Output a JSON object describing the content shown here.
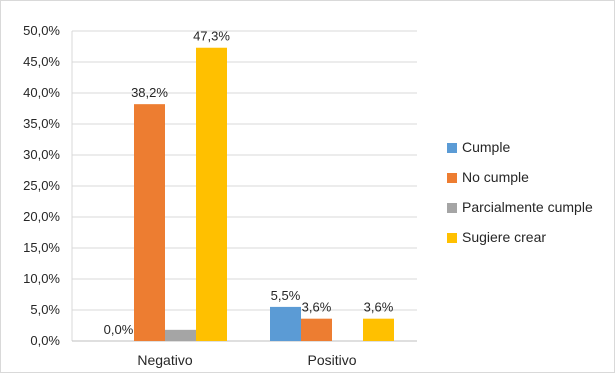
{
  "chart_data": {
    "type": "bar",
    "categories": [
      "Negativo",
      "Positivo"
    ],
    "series": [
      {
        "name": "Cumple",
        "color": "#5B9BD5",
        "values": [
          0.0,
          5.5
        ],
        "labels": [
          "0,0%",
          "5,5%"
        ]
      },
      {
        "name": "No cumple",
        "color": "#ED7D31",
        "values": [
          38.2,
          3.6
        ],
        "labels": [
          "38,2%",
          "3,6%"
        ]
      },
      {
        "name": "Parcialmente cumple",
        "color": "#A5A5A5",
        "values": [
          1.8,
          0.0
        ],
        "labels": [
          "",
          ""
        ]
      },
      {
        "name": "Sugiere crear",
        "color": "#FFC000",
        "values": [
          47.3,
          3.6
        ],
        "labels": [
          "47,3%",
          "3,6%"
        ]
      }
    ],
    "y_ticks": [
      {
        "value": 0,
        "label": "0,0%"
      },
      {
        "value": 5,
        "label": "5,0%"
      },
      {
        "value": 10,
        "label": "10,0%"
      },
      {
        "value": 15,
        "label": "15,0%"
      },
      {
        "value": 20,
        "label": "20,0%"
      },
      {
        "value": 25,
        "label": "25,0%"
      },
      {
        "value": 30,
        "label": "30,0%"
      },
      {
        "value": 35,
        "label": "35,0%"
      },
      {
        "value": 40,
        "label": "40,0%"
      },
      {
        "value": 45,
        "label": "45,0%"
      },
      {
        "value": 50,
        "label": "50,0%"
      }
    ],
    "ylim": [
      0,
      50
    ],
    "grid": true,
    "legend_position": "right"
  }
}
